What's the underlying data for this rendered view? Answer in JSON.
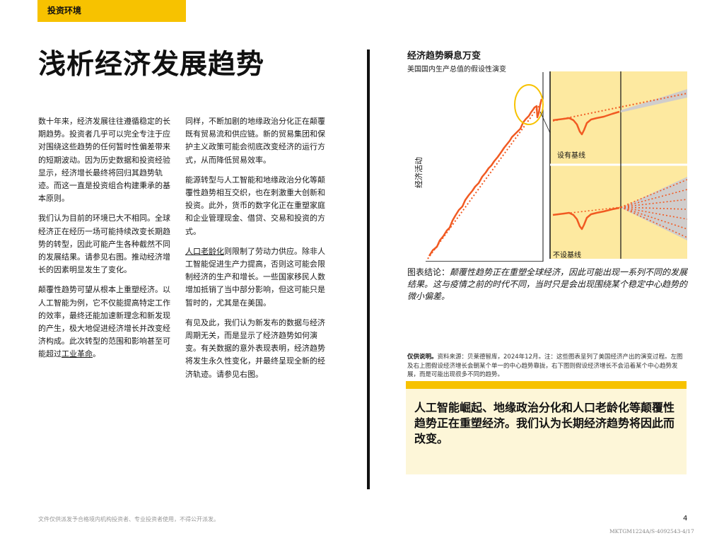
{
  "header": {
    "section_tag": "投资环境"
  },
  "page_title": "浅析经济发展趋势",
  "column1": {
    "p1": "数十年来，经济发展往往遵循稳定的长期趋势。投资者几乎可以完全专注于应对围绕这些趋势的任何暂时性偏差带来的短期波动。因为历史数据和投资经验显示，经济增长最终将回归其趋势轨迹。而这一直是投资组合构建秉承的基本原则。",
    "p2": "我们认为目前的环境已大不相同。全球经济正在经历一场可能持续改变长期趋势的转型，因此可能产生各种截然不同的发展结果。请参见右图。推动经济增长的因素明显发生了变化。",
    "p3_a": "颠覆性趋势可望从根本上重塑经济。以人工智能为例，它不仅能提高特定工作的效率，最终还能加速新理念和新发现的产生，极大地促进经济增长并改变经济构成。此次转型的范围和影响甚至可能超过",
    "p3_link": "工业革命",
    "p3_b": "。"
  },
  "column2": {
    "p1": "同样，不断加剧的地缘政治分化正在颠覆既有贸易流和供应链。新的贸易集团和保护主义政策可能会彻底改变经济的运行方式，从而降低贸易效率。",
    "p2": "能源转型与人工智能和地缘政治分化等颠覆性趋势相互交织，也在刺激重大创新和投资。此外，货币的数字化正在重塑家庭和企业管理现金、借贷、交易和投资的方式。",
    "p3_link": "人口老龄化",
    "p3_b": "则限制了劳动力供应。除非人工智能促进生产力提高，否则这可能会限制经济的生产和增长。一些国家移民人数增加抵销了当中部分影响，但这可能只是暂时的，尤其是在美国。",
    "p4": "有见及此，我们认为新发布的数据与经济周期无关，而是显示了经济趋势如何演变。有关数据的意外表现表明，经济趋势将发生永久性变化，并最终呈现全新的经济轨迹。请参见右图。"
  },
  "chart": {
    "title": "经济趋势瞬息万变",
    "subtitle": "美国国内生产总值的假设性演变",
    "ylabel": "经济活动",
    "panel_top_label": "设有基线",
    "panel_bottom_label": "不设基线",
    "colors": {
      "line": "#f15a22",
      "panel_bg": "#fde9a0",
      "highlight": "#f7c200",
      "band": "#c8c8d4"
    }
  },
  "chart_data": {
    "type": "line",
    "title": "经济趋势瞬息万变",
    "subtitle": "美国国内生产总值的假设性演变",
    "ylabel": "经济活动",
    "xlabel": "",
    "note": "hypothetical illustration, no numeric axes",
    "panels": [
      "设有基线",
      "不设基线"
    ]
  },
  "caption": {
    "lead": "图表结论：",
    "body": "颠覆性趋势正在重塑全球经济，因此可能出现一系列不同的发展结果。这与疫情之前的时代不同，当时只是会出现围绕某个稳定中心趋势的微小偏差。"
  },
  "source_note": {
    "label": "仅供说明。",
    "text": "资料来源：贝莱德智库，2024年12月。注：这些图表呈列了美国经济产出的演变过程。左图及右上图假设经济增长会朝某个单一的中心趋势靠拢，右下图则假设经济增长不会沿着某个中心趋势发展，而是可能出现很多不同的趋势。"
  },
  "callout": {
    "text": "人工智能崛起、地缘政治分化和人口老龄化等颠覆性趋势正在重塑经济。我们认为长期经济趋势将因此而改变。"
  },
  "footer": {
    "disclaimer": "文件仅供派发予合格境内机构投资者、专业投资者使用，不得公开派发。",
    "page_number": "4",
    "doc_code": "MKTGM1224A/S-4092543-4/17"
  }
}
